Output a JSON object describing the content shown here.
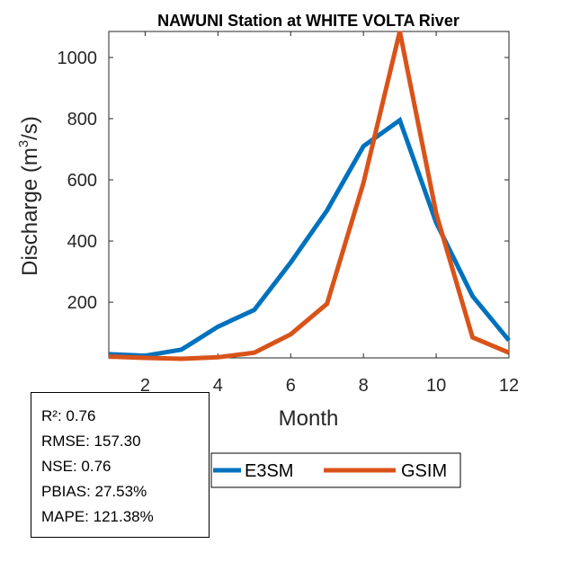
{
  "chart_data": {
    "type": "line",
    "title": "NAWUNI  Station at  WHITE VOLTA  River",
    "xlabel": "Month",
    "ylabel_main": "Discharge (m",
    "ylabel_sup": "3",
    "ylabel_end": "/s)",
    "xlim": [
      1,
      12
    ],
    "ylim": [
      18,
      1085
    ],
    "xticks": [
      2,
      4,
      6,
      8,
      10,
      12
    ],
    "yticks": [
      200,
      400,
      600,
      800,
      1000
    ],
    "x": [
      1,
      2,
      3,
      4,
      5,
      6,
      7,
      8,
      9,
      10,
      11,
      12
    ],
    "series": [
      {
        "name": "E3SM",
        "color": "#0072BD",
        "values": [
          30,
          25,
          45,
          120,
          175,
          330,
          500,
          710,
          795,
          460,
          220,
          75
        ]
      },
      {
        "name": "GSIM",
        "color": "#D95319",
        "values": [
          22,
          18,
          15,
          20,
          35,
          95,
          195,
          590,
          1085,
          490,
          85,
          35
        ]
      }
    ],
    "legend_location": "bottom-center"
  },
  "stats": {
    "r2": "R²: 0.76",
    "rmse": "RMSE: 157.30",
    "nse": "NSE: 0.76",
    "pbias": "PBIAS: 27.53%",
    "mape": "MAPE: 121.38%"
  }
}
